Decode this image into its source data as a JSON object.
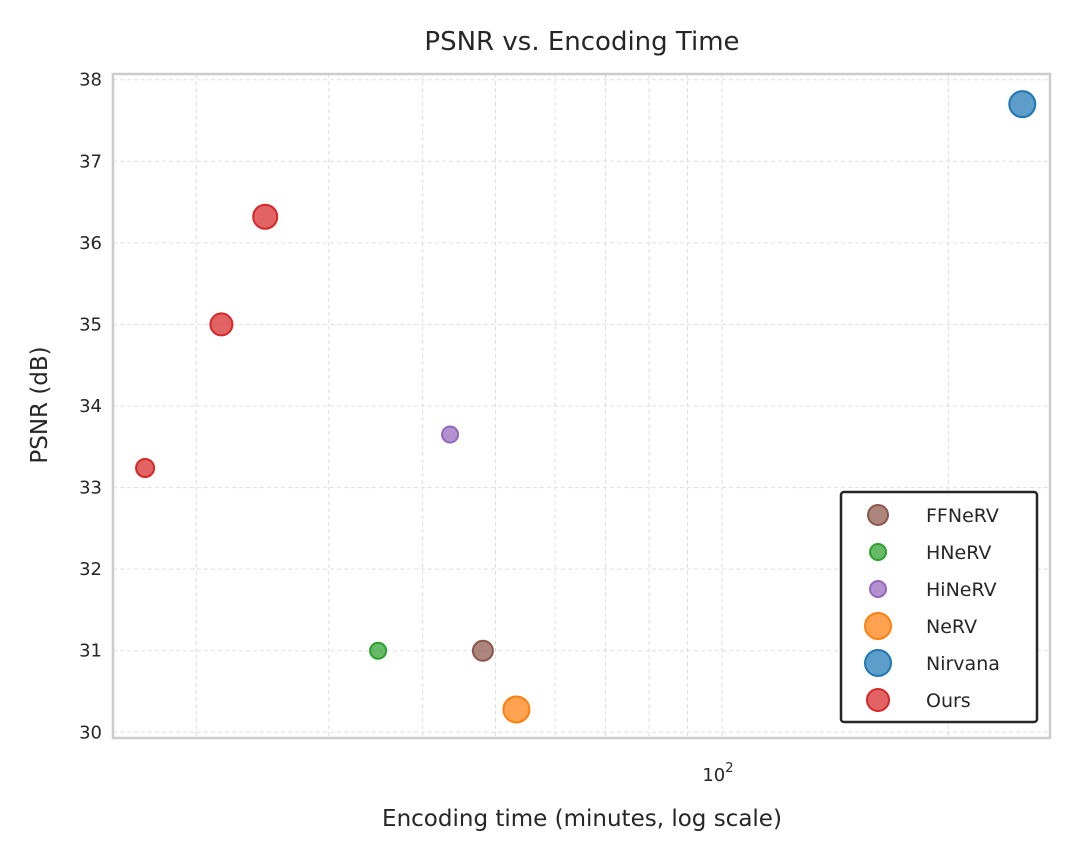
{
  "chart_data": {
    "type": "scatter",
    "title": "PSNR vs. Encoding Time",
    "xlabel": "Encoding time (minutes, log scale)",
    "ylabel": "PSNR (dB)",
    "xscale": "log",
    "xlim": [
      15.5,
      273
    ],
    "ylim": [
      29.93,
      38.07
    ],
    "y_ticks": [
      "30",
      "31",
      "32",
      "33",
      "34",
      "35",
      "36",
      "37",
      "38"
    ],
    "x_major_tick_value": 100,
    "x_tick_labels": [
      {
        "base": "10",
        "exp": "2"
      }
    ],
    "grid": true,
    "legend_position": "lower right",
    "series": [
      {
        "name": "FFNeRV",
        "color": "#8c564b",
        "points": [
          {
            "x": 48.1,
            "y": 31.0
          }
        ]
      },
      {
        "name": "HNeRV",
        "color": "#2ca02c",
        "points": [
          {
            "x": 34.9,
            "y": 31.0
          }
        ]
      },
      {
        "name": "HiNeRV",
        "color": "#9467bd",
        "points": [
          {
            "x": 43.5,
            "y": 33.65
          }
        ]
      },
      {
        "name": "NeRV",
        "color": "#ff7f0e",
        "points": [
          {
            "x": 53.3,
            "y": 30.28
          }
        ]
      },
      {
        "name": "Nirvana",
        "color": "#1f77b4",
        "points": [
          {
            "x": 250.8,
            "y": 37.7
          }
        ]
      },
      {
        "name": "Ours",
        "color": "#d62728",
        "points": [
          {
            "x": 17.1,
            "y": 33.24
          },
          {
            "x": 21.6,
            "y": 35.0
          },
          {
            "x": 24.7,
            "y": 36.32
          }
        ]
      }
    ]
  }
}
